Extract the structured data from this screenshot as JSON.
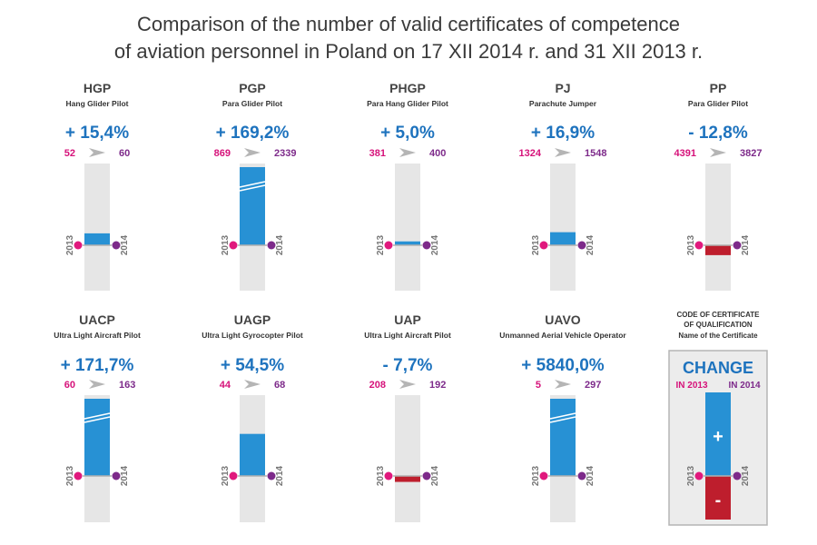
{
  "title": {
    "line1": "Comparison of the number of valid certificates of competence",
    "line2": "of aviation personnel in Poland on 17 XII 2014 r. and 31 XII 2013 r."
  },
  "colors": {
    "bar": "#2791d4",
    "negative": "#be1e2d",
    "track": "#e6e6e6",
    "dot2013": "#e0197d",
    "dot2014": "#7d2a8a",
    "percent": "#1e73be"
  },
  "chart_data": {
    "type": "bar",
    "year_labels": [
      "2013",
      "2014"
    ],
    "categories": [
      {
        "code": "HGP",
        "name": "Hang Glider Pilot",
        "change": "+ 15,4%",
        "v2013": 52,
        "v2014": 60,
        "change_value": 15.4
      },
      {
        "code": "PGP",
        "name": "Para Glider Pilot",
        "change": "+ 169,2%",
        "v2013": 869,
        "v2014": 2339,
        "change_value": 169.2
      },
      {
        "code": "PHGP",
        "name": "Para Hang Glider Pilot",
        "change": "+ 5,0%",
        "v2013": 381,
        "v2014": 400,
        "change_value": 5.0
      },
      {
        "code": "PJ",
        "name": "Parachute Jumper",
        "change": "+ 16,9%",
        "v2013": 1324,
        "v2014": 1548,
        "change_value": 16.9
      },
      {
        "code": "PP",
        "name": "Para Glider Pilot",
        "change": "- 12,8%",
        "v2013": 4391,
        "v2014": 3827,
        "change_value": -12.8
      },
      {
        "code": "UACP",
        "name": "Ultra Light Aircraft Pilot",
        "change": "+ 171,7%",
        "v2013": 60,
        "v2014": 163,
        "change_value": 171.7
      },
      {
        "code": "UAGP",
        "name": "Ultra Light Gyrocopter Pilot",
        "change": "+ 54,5%",
        "v2013": 44,
        "v2014": 68,
        "change_value": 54.5
      },
      {
        "code": "UAP",
        "name": "Ultra Light Aircraft Pilot",
        "change": "- 7,7%",
        "v2013": 208,
        "v2014": 192,
        "change_value": -7.7
      },
      {
        "code": "UAVO",
        "name": "Unmanned Aerial Vehicle Operator",
        "change": "+ 5840,0%",
        "v2013": 5,
        "v2014": 297,
        "change_value": 5840.0
      }
    ]
  },
  "legend": {
    "line1": "CODE OF CERTIFICATE",
    "line2": "OF QUALIFICATION",
    "line3": "Name of the Certificate",
    "change_label": "CHANGE",
    "in2013": "IN 2013",
    "in2014": "IN 2014",
    "plus": "+",
    "minus": "-",
    "year_labels": [
      "2013",
      "2014"
    ]
  }
}
